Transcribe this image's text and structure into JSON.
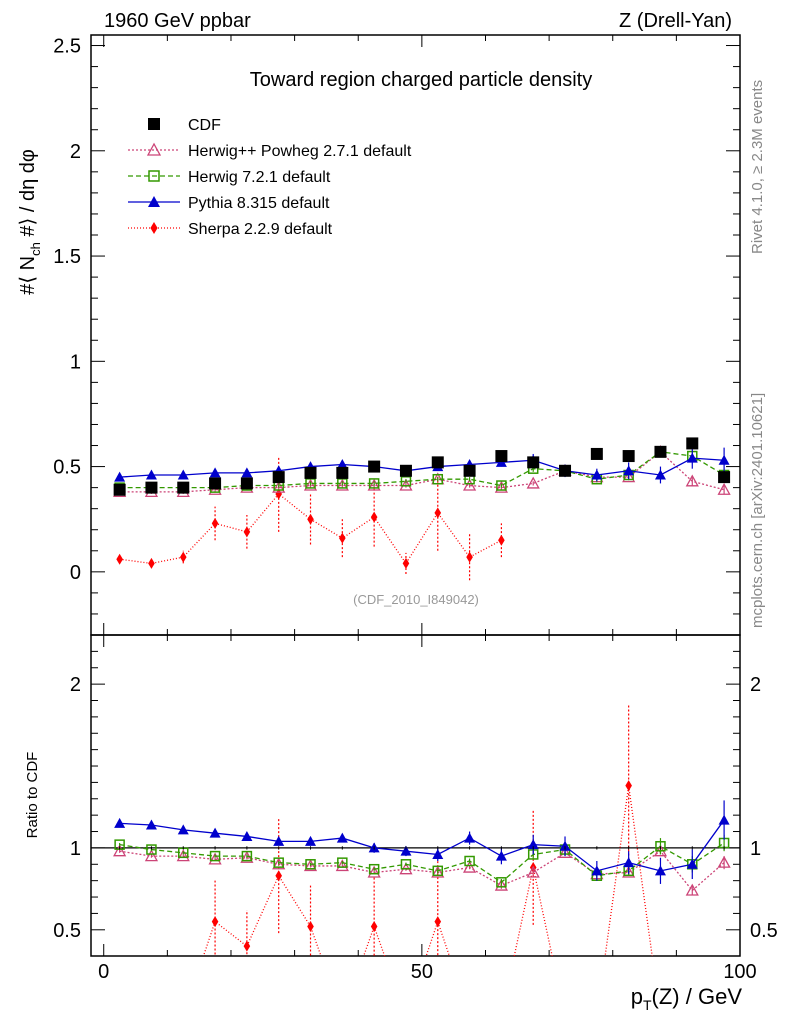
{
  "header": {
    "left": "1960 GeV ppbar",
    "right": "Z (Drell-Yan)"
  },
  "side_labels": {
    "rivet": "Rivet 4.1.0, ≥ 2.3M events",
    "mcplots": "mcplots.cern.ch [arXiv:2401.10621]"
  },
  "chart_data": {
    "type": "scatter",
    "title": "Toward region charged particle density",
    "analysis_id": "(CDF_2010_I849042)",
    "xlabel_main": "p",
    "xlabel_sub": "T",
    "xlabel_rest": "(Z) / GeV",
    "ylabel": "#⟨ N_ch #⟩ / dη dφ",
    "ylabel_parts": [
      "#⟨ N",
      "ch",
      " #⟩ / dη dφ"
    ],
    "ratio_ylabel": "Ratio to CDF",
    "xlim": [
      -2,
      100
    ],
    "ylim_main": [
      -0.3,
      2.55
    ],
    "ylim_ratio": [
      0.34,
      2.3
    ],
    "x_ticks": [
      0,
      50,
      100
    ],
    "x_tick_labels": [
      "0",
      "50",
      "100"
    ],
    "y_ticks_main": [
      0,
      0.5,
      1,
      1.5,
      2,
      2.5
    ],
    "y_tick_labels_main": [
      "0",
      "0.5",
      "1",
      "1.5",
      "2",
      "2.5"
    ],
    "y_ticks_ratio": [
      0.5,
      1,
      2
    ],
    "y_tick_labels_ratio": [
      "0.5",
      "1",
      "2"
    ],
    "x": [
      2.5,
      7.5,
      12.5,
      17.5,
      22.5,
      27.5,
      32.5,
      37.5,
      42.5,
      47.5,
      52.5,
      57.5,
      62.5,
      67.5,
      72.5,
      77.5,
      82.5,
      87.5,
      92.5,
      97.5
    ],
    "series": [
      {
        "name": "CDF",
        "marker": "square-filled",
        "color": "#000000",
        "values": [
          0.39,
          0.4,
          0.4,
          0.42,
          0.42,
          0.45,
          0.47,
          0.47,
          0.5,
          0.48,
          0.52,
          0.48,
          0.55,
          0.52,
          0.48,
          0.56,
          0.55,
          0.57,
          0.61,
          0.45
        ],
        "errors": [
          0.01,
          0.01,
          0.01,
          0.01,
          0.01,
          0.01,
          0.01,
          0.01,
          0.015,
          0.015,
          0.015,
          0.015,
          0.02,
          0.02,
          0.02,
          0.02,
          0.02,
          0.02,
          0.025,
          0.025
        ],
        "ratio": [
          1,
          1,
          1,
          1,
          1,
          1,
          1,
          1,
          1,
          1,
          1,
          1,
          1,
          1,
          1,
          1,
          1,
          1,
          1,
          1
        ]
      },
      {
        "name": "Herwig++ Powheg 2.7.1 default",
        "marker": "triangle-open",
        "color": "#cc4477",
        "dash": "2,2",
        "values": [
          0.38,
          0.38,
          0.38,
          0.39,
          0.4,
          0.4,
          0.41,
          0.41,
          0.41,
          0.41,
          0.44,
          0.41,
          0.4,
          0.42,
          0.48,
          0.45,
          0.45,
          0.57,
          0.43,
          0.39
        ],
        "errors": [
          0.01,
          0.01,
          0.01,
          0.01,
          0.01,
          0.01,
          0.01,
          0.01,
          0.01,
          0.01,
          0.01,
          0.01,
          0.01,
          0.01,
          0.015,
          0.015,
          0.015,
          0.02,
          0.02,
          0.02
        ],
        "ratio": [
          0.98,
          0.95,
          0.95,
          0.93,
          0.94,
          0.9,
          0.89,
          0.89,
          0.85,
          0.87,
          0.85,
          0.88,
          0.77,
          0.85,
          0.97,
          0.84,
          0.85,
          0.98,
          0.74,
          0.91
        ],
        "ratio_errors": [
          0.01,
          0.01,
          0.01,
          0.01,
          0.01,
          0.01,
          0.01,
          0.01,
          0.01,
          0.01,
          0.01,
          0.01,
          0.02,
          0.02,
          0.02,
          0.02,
          0.02,
          0.02,
          0.03,
          0.04
        ]
      },
      {
        "name": "Herwig 7.2.1 default",
        "marker": "square-open",
        "color": "#339900",
        "dash": "5,3",
        "values": [
          0.4,
          0.4,
          0.4,
          0.4,
          0.41,
          0.41,
          0.42,
          0.42,
          0.42,
          0.43,
          0.44,
          0.44,
          0.41,
          0.49,
          0.48,
          0.44,
          0.46,
          0.57,
          0.55,
          0.46
        ],
        "errors": [
          0.01,
          0.01,
          0.01,
          0.01,
          0.01,
          0.01,
          0.01,
          0.01,
          0.01,
          0.01,
          0.01,
          0.01,
          0.01,
          0.015,
          0.015,
          0.015,
          0.015,
          0.025,
          0.025,
          0.025
        ],
        "ratio": [
          1.02,
          0.99,
          0.97,
          0.95,
          0.95,
          0.91,
          0.9,
          0.91,
          0.87,
          0.9,
          0.86,
          0.92,
          0.79,
          0.96,
          0.99,
          0.83,
          0.86,
          1.01,
          0.9,
          1.03
        ],
        "ratio_errors": [
          0.01,
          0.01,
          0.01,
          0.01,
          0.01,
          0.01,
          0.01,
          0.01,
          0.01,
          0.01,
          0.015,
          0.015,
          0.02,
          0.03,
          0.03,
          0.03,
          0.03,
          0.05,
          0.05,
          0.05
        ]
      },
      {
        "name": "Pythia 8.315 default",
        "marker": "triangle-filled",
        "color": "#0000cc",
        "dash": "",
        "values": [
          0.45,
          0.46,
          0.46,
          0.47,
          0.47,
          0.48,
          0.5,
          0.51,
          0.5,
          0.48,
          0.5,
          0.51,
          0.52,
          0.53,
          0.48,
          0.46,
          0.48,
          0.46,
          0.54,
          0.53
        ],
        "errors": [
          0.005,
          0.005,
          0.005,
          0.005,
          0.005,
          0.01,
          0.01,
          0.01,
          0.01,
          0.01,
          0.01,
          0.02,
          0.02,
          0.03,
          0.03,
          0.03,
          0.04,
          0.04,
          0.05,
          0.06
        ],
        "ratio": [
          1.15,
          1.14,
          1.11,
          1.09,
          1.07,
          1.04,
          1.04,
          1.06,
          1.0,
          0.98,
          0.96,
          1.06,
          0.95,
          1.02,
          1.01,
          0.86,
          0.91,
          0.86,
          0.9,
          1.17
        ],
        "ratio_errors": [
          0.01,
          0.01,
          0.01,
          0.01,
          0.01,
          0.01,
          0.02,
          0.02,
          0.03,
          0.03,
          0.04,
          0.04,
          0.05,
          0.06,
          0.06,
          0.06,
          0.07,
          0.08,
          0.09,
          0.12
        ]
      },
      {
        "name": "Sherpa 2.2.9 default",
        "marker": "diamond-filled",
        "color": "#ff0000",
        "dash": "1,2",
        "x_subset": [
          2.5,
          7.5,
          12.5,
          17.5,
          22.5,
          27.5,
          32.5,
          37.5,
          42.5,
          47.5,
          52.5,
          57.5,
          62.5
        ],
        "values": [
          0.06,
          0.04,
          0.07,
          0.23,
          0.19,
          0.37,
          0.25,
          0.16,
          0.26,
          0.04,
          0.28,
          0.07,
          0.15
        ],
        "errors": [
          0.01,
          0.01,
          0.03,
          0.08,
          0.08,
          0.18,
          0.12,
          0.09,
          0.14,
          0.05,
          0.18,
          0.11,
          0.08
        ],
        "ratio_x": [
          17.5,
          22.5,
          27.5,
          32.5,
          42.5,
          52.5,
          67.5,
          82.5
        ],
        "ratio": [
          0.55,
          0.4,
          0.83,
          0.52,
          0.52,
          0.55,
          0.88,
          1.38
        ],
        "ratio_errors": [
          0.25,
          0.22,
          0.35,
          0.25,
          0.3,
          0.4,
          0.35,
          0.5
        ]
      }
    ],
    "legend_position": "top-left"
  }
}
